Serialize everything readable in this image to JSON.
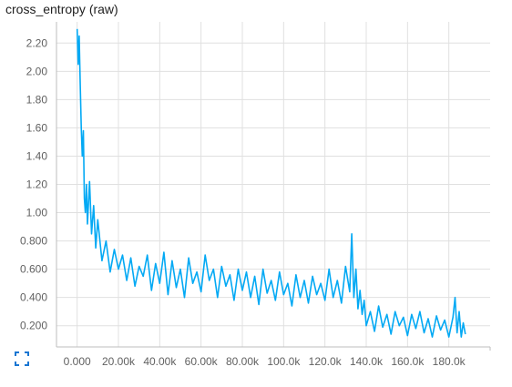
{
  "title": "cross_entropy (raw)",
  "chart_data": {
    "type": "line",
    "title": "cross_entropy (raw)",
    "xlabel": "",
    "ylabel": "",
    "xlim": [
      -10000,
      200000
    ],
    "ylim": [
      0.05,
      2.35
    ],
    "grid": true,
    "legend": "none",
    "line_color": "#03a9f4",
    "x_ticks": [
      {
        "value": 0,
        "label": "0.000"
      },
      {
        "value": 20000,
        "label": "20.00k"
      },
      {
        "value": 40000,
        "label": "40.00k"
      },
      {
        "value": 60000,
        "label": "60.00k"
      },
      {
        "value": 80000,
        "label": "80.00k"
      },
      {
        "value": 100000,
        "label": "100.0k"
      },
      {
        "value": 120000,
        "label": "120.0k"
      },
      {
        "value": 140000,
        "label": "140.0k"
      },
      {
        "value": 160000,
        "label": "160.0k"
      },
      {
        "value": 180000,
        "label": "180.0k"
      }
    ],
    "y_ticks": [
      {
        "value": 0.2,
        "label": "0.200"
      },
      {
        "value": 0.4,
        "label": "0.400"
      },
      {
        "value": 0.6,
        "label": "0.600"
      },
      {
        "value": 0.8,
        "label": "0.800"
      },
      {
        "value": 1.0,
        "label": "1.00"
      },
      {
        "value": 1.2,
        "label": "1.20"
      },
      {
        "value": 1.4,
        "label": "1.40"
      },
      {
        "value": 1.6,
        "label": "1.60"
      },
      {
        "value": 1.8,
        "label": "1.80"
      },
      {
        "value": 2.0,
        "label": "2.00"
      },
      {
        "value": 2.2,
        "label": "2.20"
      }
    ],
    "series": [
      {
        "x": [
          0,
          500,
          1000,
          1500,
          2000,
          2500,
          3000,
          3500,
          4000,
          4500,
          5000,
          6000,
          7000,
          8000,
          9000,
          10000,
          12000,
          14000,
          16000,
          18000,
          20000,
          22000,
          24000,
          26000,
          28000,
          30000,
          32000,
          34000,
          36000,
          38000,
          40000,
          42000,
          44000,
          46000,
          48000,
          50000,
          52000,
          54000,
          56000,
          58000,
          60000,
          62000,
          64000,
          66000,
          68000,
          70000,
          72000,
          74000,
          76000,
          78000,
          80000,
          82000,
          84000,
          86000,
          88000,
          90000,
          92000,
          94000,
          96000,
          98000,
          100000,
          102000,
          104000,
          106000,
          108000,
          110000,
          112000,
          114000,
          116000,
          118000,
          120000,
          122000,
          124000,
          126000,
          128000,
          130000,
          132000,
          133000,
          134000,
          135000,
          136000,
          137000,
          138000,
          139000,
          140000,
          142000,
          144000,
          146000,
          148000,
          150000,
          152000,
          154000,
          156000,
          158000,
          160000,
          162000,
          164000,
          166000,
          168000,
          170000,
          172000,
          174000,
          176000,
          178000,
          180000,
          182000,
          183000,
          184000,
          185000,
          186000,
          187000,
          188000
        ],
        "y": [
          2.3,
          2.05,
          2.25,
          1.9,
          1.6,
          1.4,
          1.58,
          1.1,
          1.0,
          1.2,
          0.92,
          1.22,
          0.85,
          1.05,
          0.75,
          0.95,
          0.66,
          0.8,
          0.58,
          0.74,
          0.6,
          0.7,
          0.52,
          0.68,
          0.48,
          0.62,
          0.55,
          0.7,
          0.45,
          0.64,
          0.5,
          0.72,
          0.42,
          0.66,
          0.47,
          0.6,
          0.4,
          0.68,
          0.5,
          0.58,
          0.44,
          0.7,
          0.52,
          0.6,
          0.4,
          0.62,
          0.48,
          0.56,
          0.38,
          0.6,
          0.45,
          0.58,
          0.4,
          0.55,
          0.35,
          0.6,
          0.43,
          0.52,
          0.38,
          0.58,
          0.42,
          0.5,
          0.34,
          0.56,
          0.4,
          0.52,
          0.36,
          0.55,
          0.42,
          0.5,
          0.38,
          0.6,
          0.4,
          0.52,
          0.36,
          0.62,
          0.44,
          0.85,
          0.4,
          0.6,
          0.32,
          0.45,
          0.28,
          0.38,
          0.2,
          0.3,
          0.16,
          0.34,
          0.19,
          0.28,
          0.14,
          0.3,
          0.2,
          0.26,
          0.13,
          0.28,
          0.18,
          0.3,
          0.15,
          0.25,
          0.12,
          0.27,
          0.17,
          0.24,
          0.12,
          0.26,
          0.4,
          0.15,
          0.3,
          0.12,
          0.22,
          0.14
        ]
      }
    ]
  },
  "icons": {
    "fullscreen": "fullscreen-icon"
  }
}
